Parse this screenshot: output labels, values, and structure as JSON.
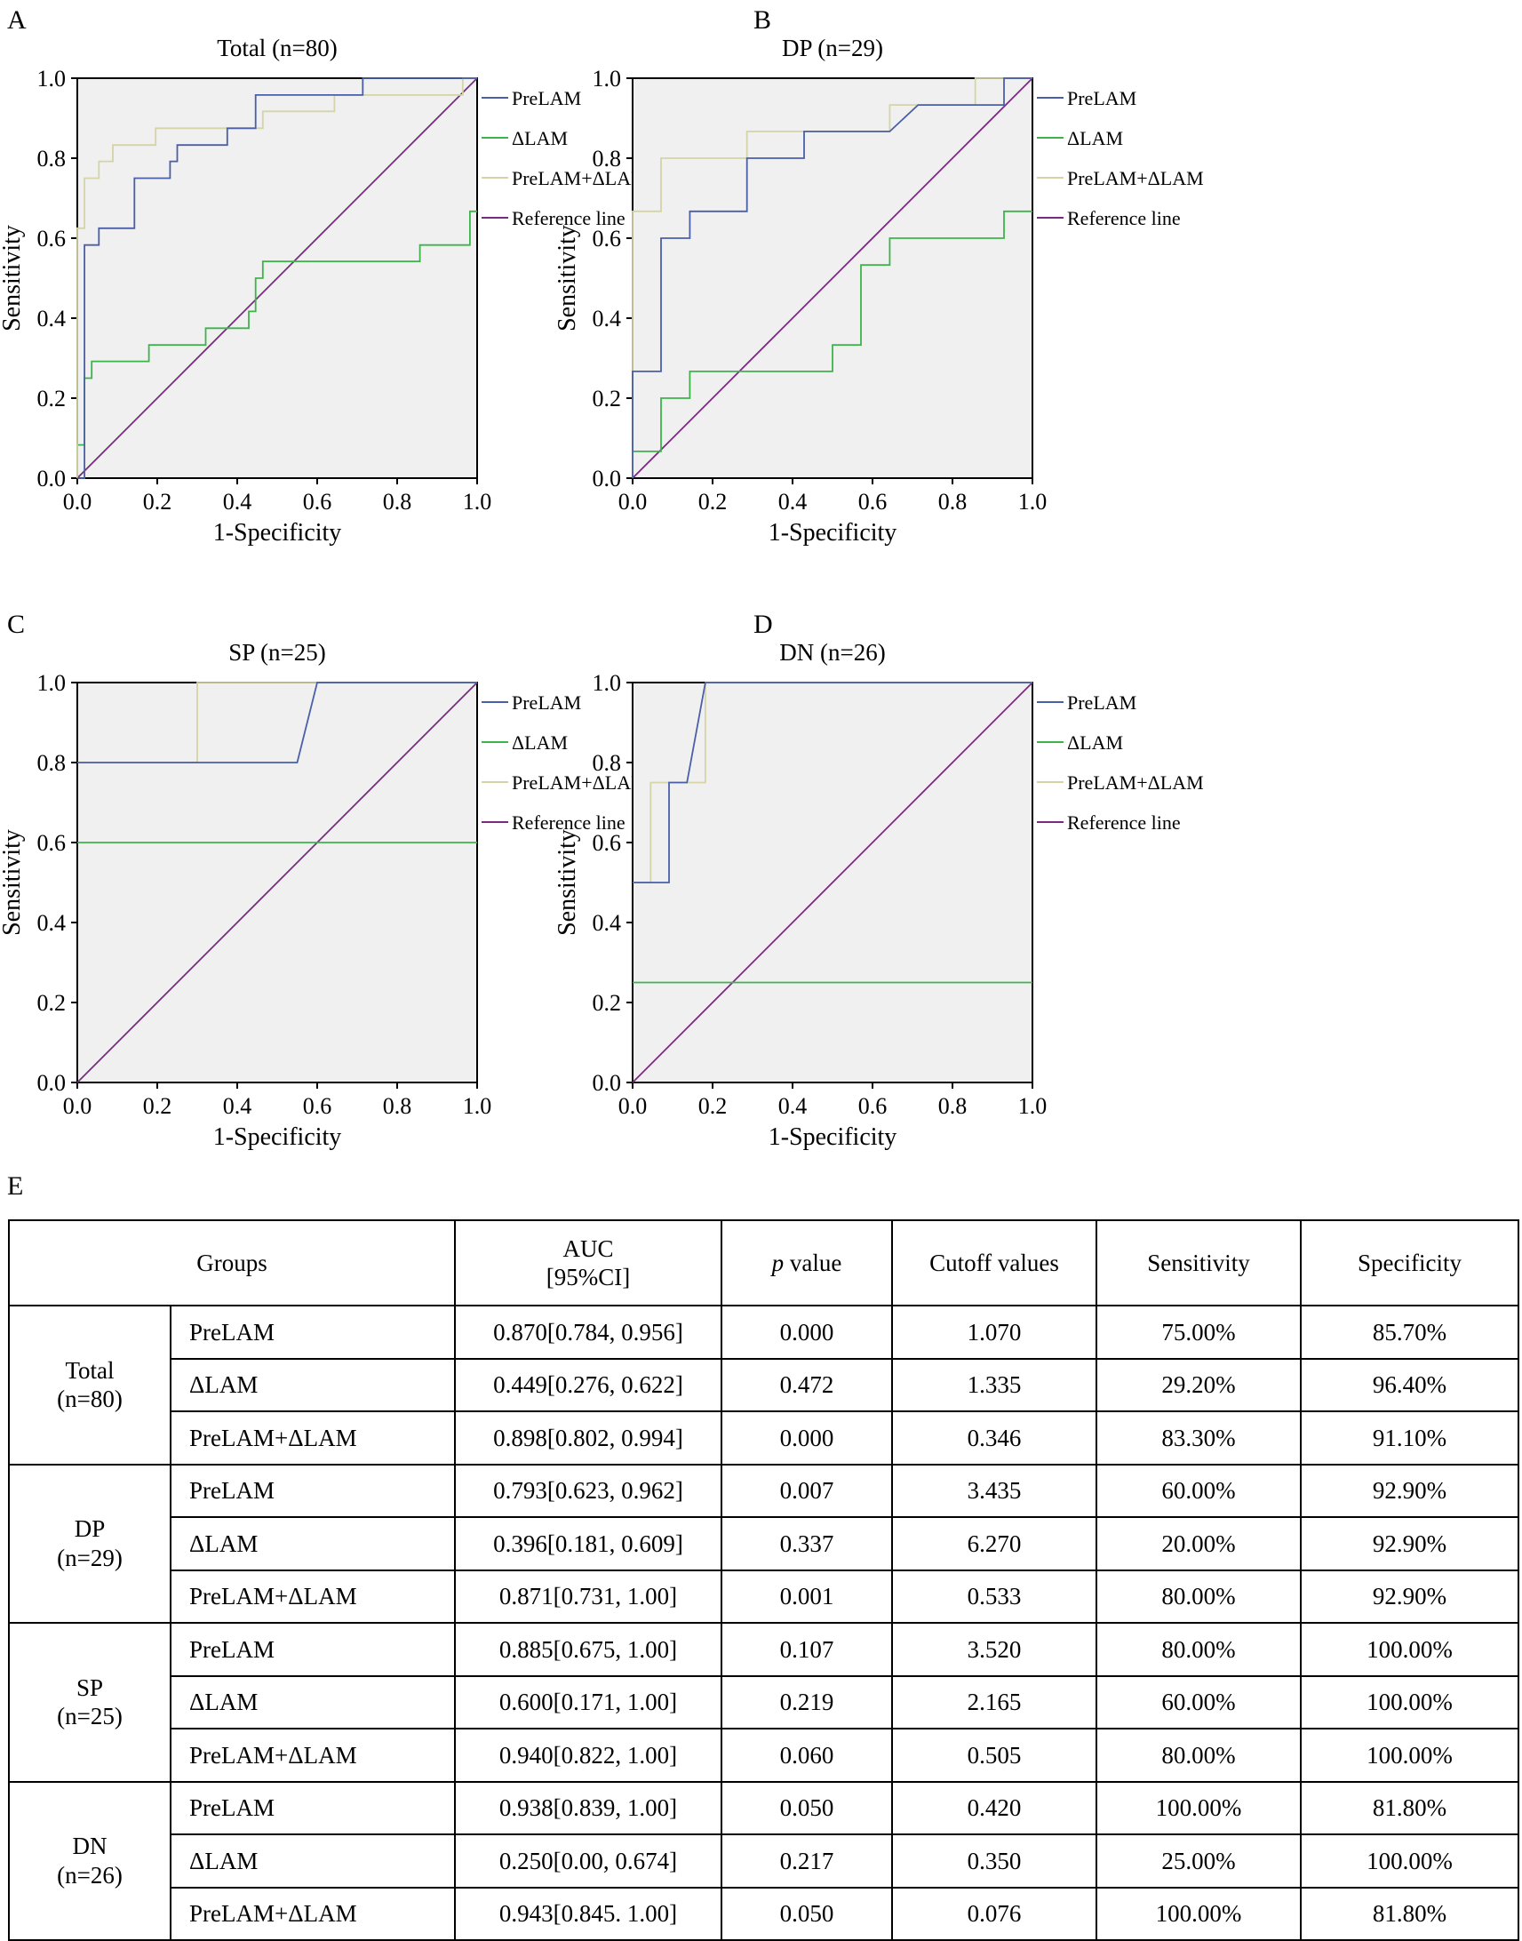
{
  "colors": {
    "prelam": "#4a5fa8",
    "dlam": "#3cb44a",
    "combined": "#d4d4a6",
    "reference": "#7a2a80",
    "plot_bg": "#f0f0f0"
  },
  "legend": [
    "PreLAM",
    "ΔLAM",
    "PreLAM+ΔLAM",
    "Reference line"
  ],
  "table_panel_letter": "E",
  "chart_data": [
    {
      "panel": "A",
      "type": "line",
      "title": "Total (n=80)",
      "xlabel": "1-Specificity",
      "ylabel": "Sensitivity",
      "xlim": [
        0,
        1
      ],
      "ylim": [
        0,
        1
      ],
      "x_ticks": [
        "0.0",
        "0.2",
        "0.4",
        "0.6",
        "0.8",
        "1.0"
      ],
      "y_ticks": [
        "0.0",
        "0.2",
        "0.4",
        "0.6",
        "0.8",
        "1.0"
      ],
      "series": [
        {
          "name": "PreLAM",
          "color_key": "prelam",
          "points": [
            [
              0,
              0
            ],
            [
              0.018,
              0
            ],
            [
              0.018,
              0.583
            ],
            [
              0.054,
              0.583
            ],
            [
              0.054,
              0.625
            ],
            [
              0.143,
              0.625
            ],
            [
              0.143,
              0.75
            ],
            [
              0.232,
              0.75
            ],
            [
              0.232,
              0.792
            ],
            [
              0.25,
              0.792
            ],
            [
              0.25,
              0.833
            ],
            [
              0.375,
              0.833
            ],
            [
              0.375,
              0.875
            ],
            [
              0.446,
              0.875
            ],
            [
              0.446,
              0.958
            ],
            [
              0.714,
              0.958
            ],
            [
              0.714,
              1
            ],
            [
              1,
              1
            ]
          ]
        },
        {
          "name": "ΔLAM",
          "color_key": "dlam",
          "points": [
            [
              0,
              0
            ],
            [
              0,
              0.083
            ],
            [
              0.018,
              0.083
            ],
            [
              0.018,
              0.25
            ],
            [
              0.036,
              0.25
            ],
            [
              0.036,
              0.292
            ],
            [
              0.179,
              0.292
            ],
            [
              0.179,
              0.333
            ],
            [
              0.321,
              0.333
            ],
            [
              0.321,
              0.375
            ],
            [
              0.429,
              0.375
            ],
            [
              0.429,
              0.417
            ],
            [
              0.446,
              0.417
            ],
            [
              0.446,
              0.5
            ],
            [
              0.464,
              0.5
            ],
            [
              0.464,
              0.542
            ],
            [
              0.857,
              0.542
            ],
            [
              0.857,
              0.583
            ],
            [
              0.982,
              0.583
            ],
            [
              0.982,
              0.667
            ],
            [
              1,
              0.667
            ]
          ]
        },
        {
          "name": "PreLAM+ΔLAM",
          "color_key": "combined",
          "points": [
            [
              0,
              0
            ],
            [
              0,
              0.625
            ],
            [
              0.018,
              0.625
            ],
            [
              0.018,
              0.75
            ],
            [
              0.054,
              0.75
            ],
            [
              0.054,
              0.792
            ],
            [
              0.089,
              0.792
            ],
            [
              0.089,
              0.833
            ],
            [
              0.196,
              0.833
            ],
            [
              0.196,
              0.875
            ],
            [
              0.464,
              0.875
            ],
            [
              0.464,
              0.917
            ],
            [
              0.643,
              0.917
            ],
            [
              0.643,
              0.958
            ],
            [
              0.964,
              0.958
            ],
            [
              0.964,
              1
            ],
            [
              1,
              1
            ]
          ]
        },
        {
          "name": "Reference line",
          "color_key": "reference",
          "points": [
            [
              0,
              0
            ],
            [
              1,
              1
            ]
          ]
        }
      ]
    },
    {
      "panel": "B",
      "type": "line",
      "title": "DP (n=29)",
      "xlabel": "1-Specificity",
      "ylabel": "Sensitivity",
      "xlim": [
        0,
        1
      ],
      "ylim": [
        0,
        1
      ],
      "x_ticks": [
        "0.0",
        "0.2",
        "0.4",
        "0.6",
        "0.8",
        "1.0"
      ],
      "y_ticks": [
        "0.0",
        "0.2",
        "0.4",
        "0.6",
        "0.8",
        "1.0"
      ],
      "series": [
        {
          "name": "PreLAM",
          "color_key": "prelam",
          "points": [
            [
              0,
              0
            ],
            [
              0,
              0.267
            ],
            [
              0.071,
              0.267
            ],
            [
              0.071,
              0.6
            ],
            [
              0.143,
              0.6
            ],
            [
              0.143,
              0.667
            ],
            [
              0.286,
              0.667
            ],
            [
              0.286,
              0.8
            ],
            [
              0.429,
              0.8
            ],
            [
              0.429,
              0.867
            ],
            [
              0.643,
              0.867
            ],
            [
              0.714,
              0.933
            ],
            [
              0.857,
              0.933
            ],
            [
              0.929,
              0.933
            ],
            [
              0.929,
              1
            ],
            [
              1,
              1
            ]
          ]
        },
        {
          "name": "ΔLAM",
          "color_key": "dlam",
          "points": [
            [
              0,
              0
            ],
            [
              0,
              0.067
            ],
            [
              0.071,
              0.067
            ],
            [
              0.071,
              0.2
            ],
            [
              0.143,
              0.2
            ],
            [
              0.143,
              0.267
            ],
            [
              0.5,
              0.267
            ],
            [
              0.5,
              0.333
            ],
            [
              0.571,
              0.333
            ],
            [
              0.571,
              0.533
            ],
            [
              0.643,
              0.533
            ],
            [
              0.643,
              0.6
            ],
            [
              0.929,
              0.6
            ],
            [
              0.929,
              0.667
            ],
            [
              1,
              0.667
            ]
          ]
        },
        {
          "name": "PreLAM+ΔLAM",
          "color_key": "combined",
          "points": [
            [
              0,
              0
            ],
            [
              0,
              0.667
            ],
            [
              0.071,
              0.667
            ],
            [
              0.071,
              0.8
            ],
            [
              0.286,
              0.8
            ],
            [
              0.286,
              0.867
            ],
            [
              0.643,
              0.867
            ],
            [
              0.643,
              0.933
            ],
            [
              0.857,
              0.933
            ],
            [
              0.857,
              1
            ],
            [
              1,
              1
            ]
          ]
        },
        {
          "name": "Reference line",
          "color_key": "reference",
          "points": [
            [
              0,
              0
            ],
            [
              1,
              1
            ]
          ]
        }
      ]
    },
    {
      "panel": "C",
      "type": "line",
      "title": "SP (n=25)",
      "xlabel": "1-Specificity",
      "ylabel": "Sensitivity",
      "xlim": [
        0,
        1
      ],
      "ylim": [
        0,
        1
      ],
      "x_ticks": [
        "0.0",
        "0.2",
        "0.4",
        "0.6",
        "0.8",
        "1.0"
      ],
      "y_ticks": [
        "0.0",
        "0.2",
        "0.4",
        "0.6",
        "0.8",
        "1.0"
      ],
      "series": [
        {
          "name": "PreLAM",
          "color_key": "prelam",
          "points": [
            [
              0,
              0.8
            ],
            [
              0.55,
              0.8
            ],
            [
              0.6,
              1
            ],
            [
              1,
              1
            ]
          ]
        },
        {
          "name": "ΔLAM",
          "color_key": "dlam",
          "points": [
            [
              0,
              0.6
            ],
            [
              1,
              0.6
            ]
          ]
        },
        {
          "name": "PreLAM+ΔLAM",
          "color_key": "combined",
          "points": [
            [
              0,
              0.8
            ],
            [
              0.3,
              0.8
            ],
            [
              0.3,
              1
            ],
            [
              1,
              1
            ]
          ]
        },
        {
          "name": "Reference line",
          "color_key": "reference",
          "points": [
            [
              0,
              0
            ],
            [
              1,
              1
            ]
          ]
        }
      ]
    },
    {
      "panel": "D",
      "type": "line",
      "title": "DN (n=26)",
      "xlabel": "1-Specificity",
      "ylabel": "Sensitivity",
      "xlim": [
        0,
        1
      ],
      "ylim": [
        0,
        1
      ],
      "x_ticks": [
        "0.0",
        "0.2",
        "0.4",
        "0.6",
        "0.8",
        "1.0"
      ],
      "y_ticks": [
        "0.0",
        "0.2",
        "0.4",
        "0.6",
        "0.8",
        "1.0"
      ],
      "series": [
        {
          "name": "PreLAM",
          "color_key": "prelam",
          "points": [
            [
              0,
              0.5
            ],
            [
              0.091,
              0.5
            ],
            [
              0.091,
              0.75
            ],
            [
              0.136,
              0.75
            ],
            [
              0.182,
              1
            ],
            [
              1,
              1
            ]
          ]
        },
        {
          "name": "ΔLAM",
          "color_key": "dlam",
          "points": [
            [
              0,
              0.25
            ],
            [
              1,
              0.25
            ]
          ]
        },
        {
          "name": "PreLAM+ΔLAM",
          "color_key": "combined",
          "points": [
            [
              0,
              0.5
            ],
            [
              0.045,
              0.5
            ],
            [
              0.045,
              0.75
            ],
            [
              0.182,
              0.75
            ],
            [
              0.182,
              1
            ],
            [
              1,
              1
            ]
          ]
        },
        {
          "name": "Reference line",
          "color_key": "reference",
          "points": [
            [
              0,
              0
            ],
            [
              1,
              1
            ]
          ]
        }
      ]
    },
    {
      "panel": "E",
      "type": "table",
      "header": {
        "groups": "Groups",
        "auc_line1": "AUC",
        "auc_line2": "[95%CI]",
        "p_italic": "p",
        "p_rest": " value",
        "cutoff": "Cutoff values",
        "sensitivity": "Sensitivity",
        "specificity": "Specificity"
      },
      "groups": [
        {
          "name": "Total",
          "n": "(n=80)",
          "rows": [
            {
              "marker": "PreLAM",
              "auc": "0.870[0.784, 0.956]",
              "p": "0.000",
              "cutoff": "1.070",
              "sensitivity": "75.00%",
              "specificity": "85.70%"
            },
            {
              "marker": "ΔLAM",
              "auc": "0.449[0.276, 0.622]",
              "p": "0.472",
              "cutoff": "1.335",
              "sensitivity": "29.20%",
              "specificity": "96.40%"
            },
            {
              "marker": "PreLAM+ΔLAM",
              "auc": "0.898[0.802, 0.994]",
              "p": "0.000",
              "cutoff": "0.346",
              "sensitivity": "83.30%",
              "specificity": "91.10%"
            }
          ]
        },
        {
          "name": "DP",
          "n": "(n=29)",
          "rows": [
            {
              "marker": "PreLAM",
              "auc": "0.793[0.623, 0.962]",
              "p": "0.007",
              "cutoff": "3.435",
              "sensitivity": "60.00%",
              "specificity": "92.90%"
            },
            {
              "marker": "ΔLAM",
              "auc": "0.396[0.181, 0.609]",
              "p": "0.337",
              "cutoff": "6.270",
              "sensitivity": "20.00%",
              "specificity": "92.90%"
            },
            {
              "marker": "PreLAM+ΔLAM",
              "auc": "0.871[0.731, 1.00]",
              "p": "0.001",
              "cutoff": "0.533",
              "sensitivity": "80.00%",
              "specificity": "92.90%"
            }
          ]
        },
        {
          "name": "SP",
          "n": "(n=25)",
          "rows": [
            {
              "marker": "PreLAM",
              "auc": "0.885[0.675, 1.00]",
              "p": "0.107",
              "cutoff": "3.520",
              "sensitivity": "80.00%",
              "specificity": "100.00%"
            },
            {
              "marker": "ΔLAM",
              "auc": "0.600[0.171, 1.00]",
              "p": "0.219",
              "cutoff": "2.165",
              "sensitivity": "60.00%",
              "specificity": "100.00%"
            },
            {
              "marker": "PreLAM+ΔLAM",
              "auc": "0.940[0.822, 1.00]",
              "p": "0.060",
              "cutoff": "0.505",
              "sensitivity": "80.00%",
              "specificity": "100.00%"
            }
          ]
        },
        {
          "name": "DN",
          "n": "(n=26)",
          "rows": [
            {
              "marker": "PreLAM",
              "auc": "0.938[0.839, 1.00]",
              "p": "0.050",
              "cutoff": "0.420",
              "sensitivity": "100.00%",
              "specificity": "81.80%"
            },
            {
              "marker": "ΔLAM",
              "auc": "0.250[0.00, 0.674]",
              "p": "0.217",
              "cutoff": "0.350",
              "sensitivity": "25.00%",
              "specificity": "100.00%"
            },
            {
              "marker": "PreLAM+ΔLAM",
              "auc": "0.943[0.845. 1.00]",
              "p": "0.050",
              "cutoff": "0.076",
              "sensitivity": "100.00%",
              "specificity": "81.80%"
            }
          ]
        }
      ]
    }
  ]
}
